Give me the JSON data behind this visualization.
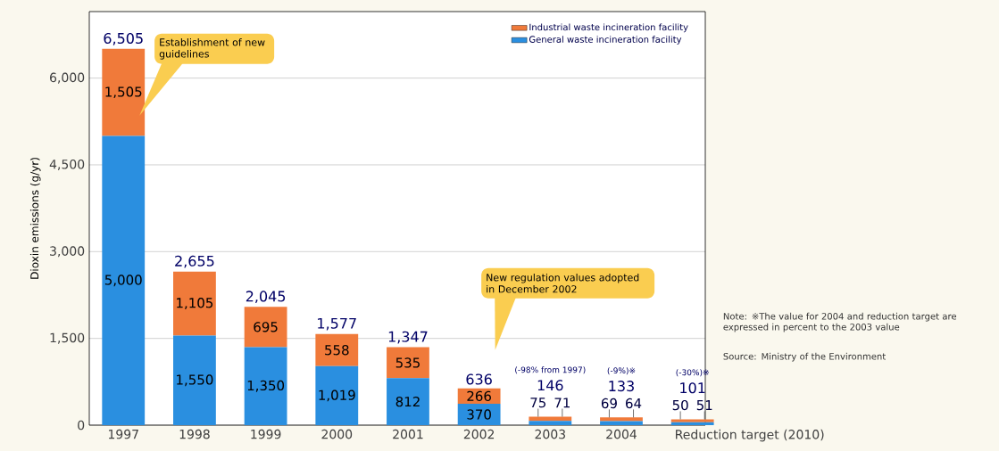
{
  "chart_data": {
    "type": "bar",
    "stacked": true,
    "ylabel": "Dioxin emissions (g/yr)",
    "categories": [
      "1997",
      "1998",
      "1999",
      "2000",
      "2001",
      "2002",
      "2003",
      "2004",
      "Reduction target (2010)"
    ],
    "series": [
      {
        "name": "General waste incineration facility",
        "color": "#2a8fe0",
        "values": [
          5000,
          1550,
          1350,
          1019,
          812,
          370,
          75,
          69,
          50
        ],
        "value_labels": [
          "5,000",
          "1,550",
          "1,350",
          "1,019",
          "812",
          "370",
          "75",
          "69",
          "50"
        ]
      },
      {
        "name": "Industrial waste incineration facility",
        "color": "#f07a3a",
        "values": [
          1505,
          1105,
          695,
          558,
          535,
          266,
          71,
          64,
          51
        ],
        "value_labels": [
          "1,505",
          "1,105",
          "695",
          "558",
          "535",
          "266",
          "71",
          "64",
          "51"
        ]
      }
    ],
    "totals": [
      "6,505",
      "2,655",
      "2,045",
      "1,577",
      "1,347",
      "636",
      "146",
      "133",
      "101"
    ],
    "ylim": [
      0,
      7150
    ],
    "yticks": [
      0,
      {
        "value": 1500,
        "label": "1,500"
      },
      {
        "value": 3000,
        "label": "3,000"
      },
      {
        "value": 4500,
        "label": "4,500"
      },
      {
        "value": 6000,
        "label": "6,000"
      }
    ],
    "grid": "y",
    "legend": "top right",
    "annotations": [
      "Establishment of new guidelines",
      "New regulation values adopted in December 2002",
      "(-98% from 1997)",
      "(-9%)※",
      "(-30%)※",
      "Note: ※The value for 2004 and reduction target are expressed in percent to the 2003 value",
      "Source: Ministry of the Environment"
    ]
  }
}
